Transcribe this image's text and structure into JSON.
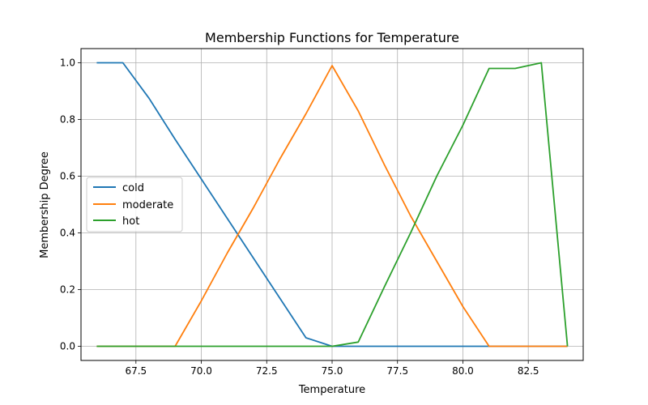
{
  "chart_data": {
    "type": "line",
    "title": "Membership Functions for Temperature",
    "xlabel": "Temperature",
    "ylabel": "Membership Degree",
    "xlim": [
      65.4,
      84.6
    ],
    "ylim": [
      -0.05,
      1.05
    ],
    "xticks": [
      67.5,
      70.0,
      72.5,
      75.0,
      77.5,
      80.0,
      82.5
    ],
    "xtick_labels": [
      "67.5",
      "70.0",
      "72.5",
      "75.0",
      "77.5",
      "80.0",
      "82.5"
    ],
    "yticks": [
      0.0,
      0.2,
      0.4,
      0.6,
      0.8,
      1.0
    ],
    "ytick_labels": [
      "0.0",
      "0.2",
      "0.4",
      "0.6",
      "0.8",
      "1.0"
    ],
    "grid": true,
    "legend_position": "center-left",
    "series": [
      {
        "name": "cold",
        "color": "#1f77b4",
        "x": [
          66,
          67,
          68,
          69,
          70,
          71,
          72,
          73,
          74,
          75,
          76,
          77,
          78,
          79,
          80,
          81,
          82,
          83,
          84
        ],
        "values": [
          1.0,
          1.0,
          0.875,
          0.73,
          0.59,
          0.45,
          0.31,
          0.17,
          0.03,
          0.0,
          0.0,
          0.0,
          0.0,
          0.0,
          0.0,
          0.0,
          0.0,
          0.0,
          0.0
        ]
      },
      {
        "name": "moderate",
        "color": "#ff7f0e",
        "x": [
          66,
          67,
          68,
          69,
          70,
          71,
          72,
          73,
          74,
          75,
          76,
          77,
          78,
          79,
          80,
          81,
          82,
          83,
          84
        ],
        "values": [
          0.0,
          0.0,
          0.0,
          0.0,
          0.16,
          0.33,
          0.49,
          0.66,
          0.82,
          0.99,
          0.83,
          0.64,
          0.46,
          0.3,
          0.14,
          0.0,
          0.0,
          0.0,
          0.0
        ]
      },
      {
        "name": "hot",
        "color": "#2ca02c",
        "x": [
          66,
          67,
          68,
          69,
          70,
          71,
          72,
          73,
          74,
          75,
          76,
          77,
          78,
          79,
          80,
          81,
          82,
          83,
          84
        ],
        "values": [
          0.0,
          0.0,
          0.0,
          0.0,
          0.0,
          0.0,
          0.0,
          0.0,
          0.0,
          0.0,
          0.015,
          0.21,
          0.4,
          0.6,
          0.78,
          0.98,
          0.98,
          1.0,
          0.0
        ]
      }
    ]
  }
}
